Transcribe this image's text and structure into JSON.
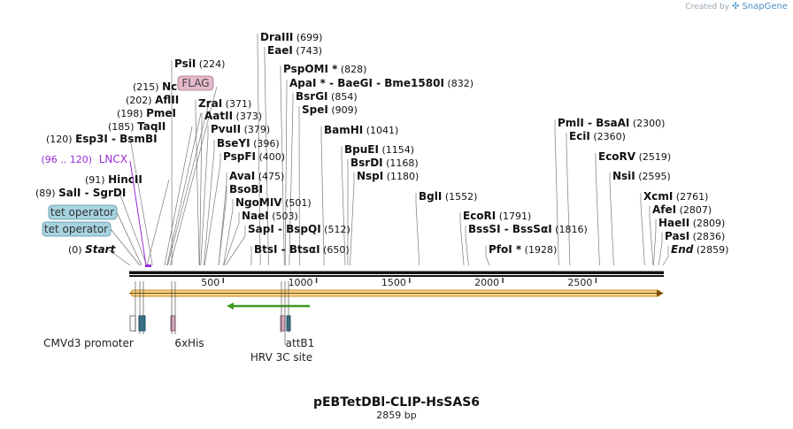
{
  "header": {
    "created_by": "Created by",
    "brand": "SnapGene",
    "brand_icon": "snapgene-logo-icon"
  },
  "plasmid": {
    "name": "pEBTetDBl-CLIP-HsSAS6",
    "length_label": "2859 bp",
    "length": 2859
  },
  "ruler": {
    "ticks": [
      500,
      1000,
      1500,
      2000,
      2500
    ]
  },
  "sites": [
    {
      "name": "DraIII",
      "pos": "(699)",
      "bp": 699
    },
    {
      "name": "EaeI",
      "pos": "(743)",
      "bp": 743
    },
    {
      "name": "PsiI",
      "pos": "(224)",
      "bp": 224
    },
    {
      "name": "PspOMI *",
      "pos": "(828)",
      "bp": 828
    },
    {
      "name": "ApaI * - BaeGI - Bme1580I",
      "pos": "(832)",
      "bp": 832
    },
    {
      "name": "NcoI",
      "pos": "(215)",
      "bp": 215
    },
    {
      "name": "BsrGI",
      "pos": "(854)",
      "bp": 854
    },
    {
      "name": "AflII",
      "pos": "(202)",
      "bp": 202
    },
    {
      "name": "ZraI",
      "pos": "(371)",
      "bp": 371
    },
    {
      "name": "SpeI",
      "pos": "(909)",
      "bp": 909
    },
    {
      "name": "PmeI",
      "pos": "(198)",
      "bp": 198
    },
    {
      "name": "AatII",
      "pos": "(373)",
      "bp": 373
    },
    {
      "name": "PmlI - BsaAI",
      "pos": "(2300)",
      "bp": 2300
    },
    {
      "name": "TaqII",
      "pos": "(185)",
      "bp": 185
    },
    {
      "name": "PvuII",
      "pos": "(379)",
      "bp": 379
    },
    {
      "name": "BamHI",
      "pos": "(1041)",
      "bp": 1041
    },
    {
      "name": "Esp3I - BsmBI",
      "pos": "(120)",
      "bp": 120
    },
    {
      "name": "BseYI",
      "pos": "(396)",
      "bp": 396
    },
    {
      "name": "EciI",
      "pos": "(2360)",
      "bp": 2360
    },
    {
      "name": "BpuEI",
      "pos": "(1154)",
      "bp": 1154
    },
    {
      "name": "PspFI",
      "pos": "(400)",
      "bp": 400
    },
    {
      "name": "EcoRV",
      "pos": "(2519)",
      "bp": 2519
    },
    {
      "name": "BsrDI",
      "pos": "(1168)",
      "bp": 1168
    },
    {
      "name": "NspI",
      "pos": "(1180)",
      "bp": 1180
    },
    {
      "name": "HincII",
      "pos": "(91)",
      "bp": 91
    },
    {
      "name": "AvaI",
      "pos": "(475)",
      "bp": 475
    },
    {
      "name": "NsiI",
      "pos": "(2595)",
      "bp": 2595
    },
    {
      "name": "BsoBI",
      "pos": "",
      "bp": 475
    },
    {
      "name": "SalI - SgrDI",
      "pos": "(89)",
      "bp": 89
    },
    {
      "name": "BglI",
      "pos": "(1552)",
      "bp": 1552
    },
    {
      "name": "XcmI",
      "pos": "(2761)",
      "bp": 2761
    },
    {
      "name": "NgoMIV",
      "pos": "(501)",
      "bp": 501
    },
    {
      "name": "AfeI",
      "pos": "(2807)",
      "bp": 2807
    },
    {
      "name": "NaeI",
      "pos": "(503)",
      "bp": 503
    },
    {
      "name": "EcoRI",
      "pos": "(1791)",
      "bp": 1791
    },
    {
      "name": "HaeII",
      "pos": "(2809)",
      "bp": 2809
    },
    {
      "name": "SapI - BspQI",
      "pos": "(512)",
      "bp": 512
    },
    {
      "name": "BssSI - BssSαI",
      "pos": "(1816)",
      "bp": 1816
    },
    {
      "name": "PasI",
      "pos": "(2836)",
      "bp": 2836
    },
    {
      "name": "Start",
      "pos": "(0)",
      "bp": 0
    },
    {
      "name": "BtsI - BtsαI",
      "pos": "(650)",
      "bp": 650
    },
    {
      "name": "PfoI *",
      "pos": "(1928)",
      "bp": 1928
    },
    {
      "name": "End",
      "pos": "(2859)",
      "bp": 2859
    }
  ],
  "features_top": {
    "flag": "FLAG",
    "lncx_range": "(96 .. 120)",
    "lncx": "LNCX",
    "tet_operator_1": "tet operator",
    "tet_operator_2": "tet operator"
  },
  "features_bottom": {
    "cmv": "CMVd3 promoter",
    "his": "6xHis",
    "hrv": "HRV 3C site",
    "attb1": "attB1"
  },
  "colors": {
    "backbone": "#000000",
    "orf_fill": "#f6d28a",
    "orf_stroke": "#c58a17",
    "green_arrow": "#3f9a1f",
    "lncx": "#9a2ad6",
    "feature_teal": "#31778f",
    "feature_pink": "#d9a7be",
    "tet_fill": "#a7d3e0",
    "flag_fill": "#e5b9cb",
    "ticks": "#444444"
  }
}
